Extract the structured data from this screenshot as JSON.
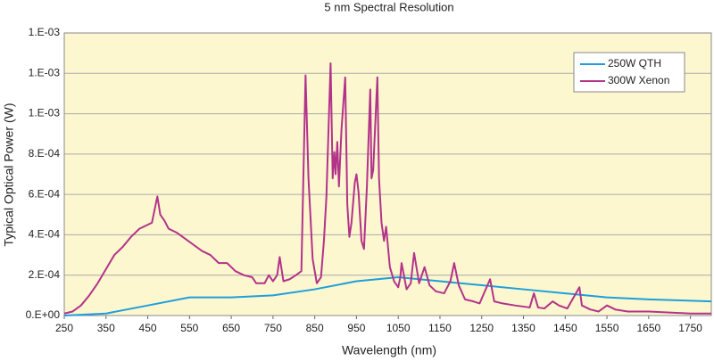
{
  "chart_data": {
    "type": "line",
    "title": "5 nm Spectral Resolution",
    "x_label": "Wavelength (nm)",
    "y_label": "Typical Optical Power (W)",
    "xlim": [
      250,
      1800
    ],
    "xticks": [
      250,
      350,
      450,
      550,
      650,
      750,
      850,
      950,
      1050,
      1150,
      1250,
      1350,
      1450,
      1550,
      1650,
      1750
    ],
    "ylim": [
      0,
      0.0014
    ],
    "yticks": [
      {
        "value": 0,
        "label": "0.E+00"
      },
      {
        "value": 0.0002,
        "label": "2.E-04"
      },
      {
        "value": 0.0004,
        "label": "4.E-04"
      },
      {
        "value": 0.0006,
        "label": "6.E-04"
      },
      {
        "value": 0.0008,
        "label": "8.E-04"
      },
      {
        "value": 0.001,
        "label": "1.E-03"
      },
      {
        "value": 0.0012,
        "label": "1.E-03"
      },
      {
        "value": 0.0014,
        "label": "1.E-03"
      }
    ],
    "grid": true,
    "legend": "upper right",
    "series": [
      {
        "name": "250W QTH",
        "color": "#1e9fdc",
        "x": [
          250,
          350,
          450,
          550,
          650,
          750,
          850,
          950,
          1000,
          1050,
          1150,
          1250,
          1350,
          1450,
          1550,
          1650,
          1800
        ],
        "values": [
          0,
          1e-05,
          5e-05,
          9e-05,
          9e-05,
          0.0001,
          0.00013,
          0.00017,
          0.00018,
          0.00019,
          0.00017,
          0.00015,
          0.00013,
          0.00011,
          9e-05,
          8e-05,
          7e-05
        ]
      },
      {
        "name": "300W Xenon",
        "color": "#b3338a",
        "x": [
          250,
          270,
          290,
          310,
          330,
          350,
          370,
          390,
          410,
          430,
          450,
          460,
          473,
          480,
          490,
          500,
          520,
          540,
          560,
          580,
          600,
          620,
          640,
          660,
          680,
          700,
          710,
          730,
          740,
          750,
          760,
          766,
          775,
          790,
          805,
          818,
          828,
          835,
          845,
          855,
          865,
          872,
          878,
          888,
          893,
          897,
          900,
          904,
          908,
          914,
          923,
          928,
          933,
          938,
          946,
          950,
          955,
          962,
          968,
          975,
          983,
          986,
          990,
          1000,
          1004,
          1010,
          1016,
          1021,
          1030,
          1040,
          1050,
          1055,
          1058,
          1070,
          1080,
          1088,
          1100,
          1113,
          1125,
          1140,
          1160,
          1175,
          1184,
          1195,
          1210,
          1230,
          1245,
          1270,
          1280,
          1300,
          1330,
          1365,
          1375,
          1385,
          1400,
          1420,
          1435,
          1455,
          1484,
          1490,
          1510,
          1530,
          1550,
          1570,
          1600,
          1650,
          1700,
          1750,
          1800
        ],
        "values": [
          1e-05,
          2e-05,
          5e-05,
          0.0001,
          0.00016,
          0.00023,
          0.0003,
          0.00034,
          0.00039,
          0.00043,
          0.00045,
          0.00046,
          0.00059,
          0.0005,
          0.00047,
          0.00043,
          0.00041,
          0.00038,
          0.00035,
          0.00032,
          0.0003,
          0.00026,
          0.00026,
          0.00022,
          0.0002,
          0.00019,
          0.00016,
          0.00016,
          0.0002,
          0.00017,
          0.0002,
          0.00029,
          0.00017,
          0.00018,
          0.0002,
          0.00022,
          0.00119,
          0.00068,
          0.00028,
          0.00016,
          0.00019,
          0.00037,
          0.00059,
          0.00125,
          0.00068,
          0.00081,
          0.0007,
          0.00086,
          0.00064,
          0.00092,
          0.00118,
          0.00055,
          0.00039,
          0.00046,
          0.00066,
          0.0007,
          0.00061,
          0.00037,
          0.00033,
          0.00064,
          0.00112,
          0.00068,
          0.00072,
          0.00118,
          0.00068,
          0.00046,
          0.00037,
          0.00044,
          0.00024,
          0.00017,
          0.00014,
          0.00019,
          0.00026,
          0.00013,
          0.00016,
          0.00031,
          0.00016,
          0.00024,
          0.00015,
          0.00012,
          0.00011,
          0.00017,
          0.00026,
          0.00015,
          8e-05,
          7e-05,
          6e-05,
          0.00018,
          7e-05,
          6e-05,
          5e-05,
          4e-05,
          0.00011,
          4e-05,
          3.5e-05,
          7e-05,
          5e-05,
          3.5e-05,
          0.00014,
          5e-05,
          3e-05,
          2e-05,
          5e-05,
          3e-05,
          2e-05,
          2e-05,
          1.5e-05,
          1e-05,
          1e-05
        ]
      }
    ]
  }
}
